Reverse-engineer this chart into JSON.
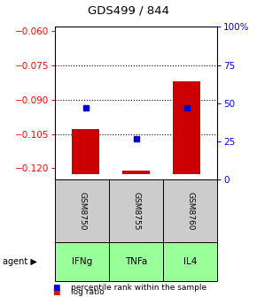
{
  "title": "GDS499 / 844",
  "categories": [
    "IFNg",
    "TNFa",
    "IL4"
  ],
  "gsm_labels": [
    "GSM8750",
    "GSM8755",
    "GSM8760"
  ],
  "log_ratios": [
    -0.103,
    -0.121,
    -0.082
  ],
  "percentile_ranks": [
    0.47,
    0.27,
    0.47
  ],
  "ylim_left": [
    -0.125,
    -0.058
  ],
  "ylim_right": [
    0,
    1
  ],
  "yticks_left": [
    -0.12,
    -0.105,
    -0.09,
    -0.075,
    -0.06
  ],
  "yticks_right": [
    0,
    0.25,
    0.5,
    0.75,
    1.0
  ],
  "ytick_labels_right": [
    "0",
    "25",
    "50",
    "75",
    "100%"
  ],
  "gridlines": [
    -0.075,
    -0.09,
    -0.105
  ],
  "bar_color": "#cc0000",
  "dot_color": "#0000cc",
  "bar_bottom": -0.1225,
  "gsm_box_color": "#cccccc",
  "agent_box_color": "#99ff99",
  "fig_width": 2.9,
  "fig_height": 3.36,
  "dpi": 100
}
